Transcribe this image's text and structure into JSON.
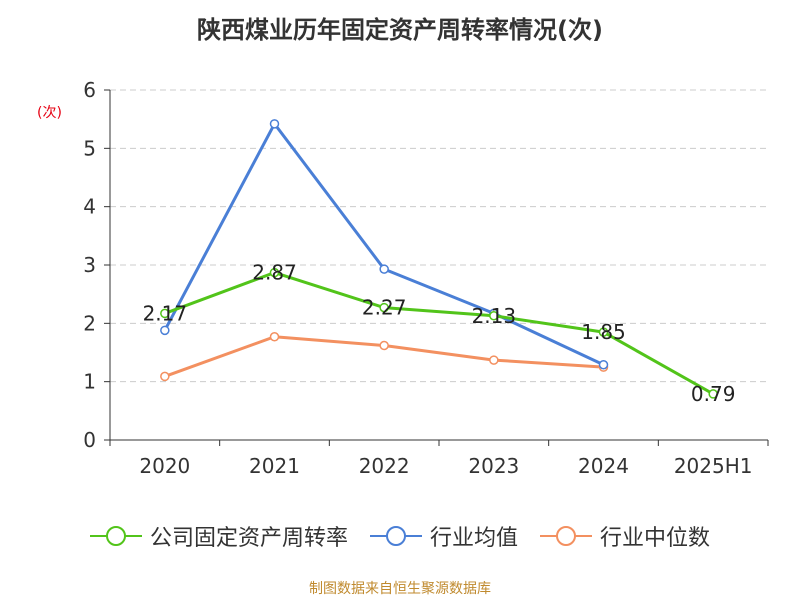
{
  "title": "陕西煤业历年固定资产周转率情况(次)",
  "source": "制图数据来自恒生聚源数据库",
  "colors": {
    "title": "#333333",
    "ylabel": "#e60012",
    "source": "#c08a2e",
    "grid": "#cccccc",
    "axis": "#333333"
  },
  "chart_data": {
    "type": "line",
    "title": "陕西煤业历年固定资产周转率情况(次)",
    "xlabel": "",
    "ylabel": "(次)",
    "categories": [
      "2020",
      "2021",
      "2022",
      "2023",
      "2024",
      "2025H1"
    ],
    "ylim": [
      0,
      6
    ],
    "yticks": [
      0,
      1,
      2,
      3,
      4,
      5,
      6
    ],
    "grid": true,
    "legend": "bottom-center",
    "series": [
      {
        "name": "公司固定资产周转率",
        "color": "#52c41a",
        "values": [
          2.17,
          2.87,
          2.27,
          2.13,
          1.85,
          0.79
        ],
        "labels": [
          "2.17",
          "2.87",
          "2.27",
          "2.13",
          "1.85",
          "0.79"
        ]
      },
      {
        "name": "行业均值",
        "color": "#4a7fd6",
        "values": [
          1.88,
          5.42,
          2.93,
          2.17,
          1.29,
          null
        ]
      },
      {
        "name": "行业中位数",
        "color": "#f39060",
        "values": [
          1.09,
          1.77,
          1.62,
          1.37,
          1.25,
          null
        ]
      }
    ]
  }
}
